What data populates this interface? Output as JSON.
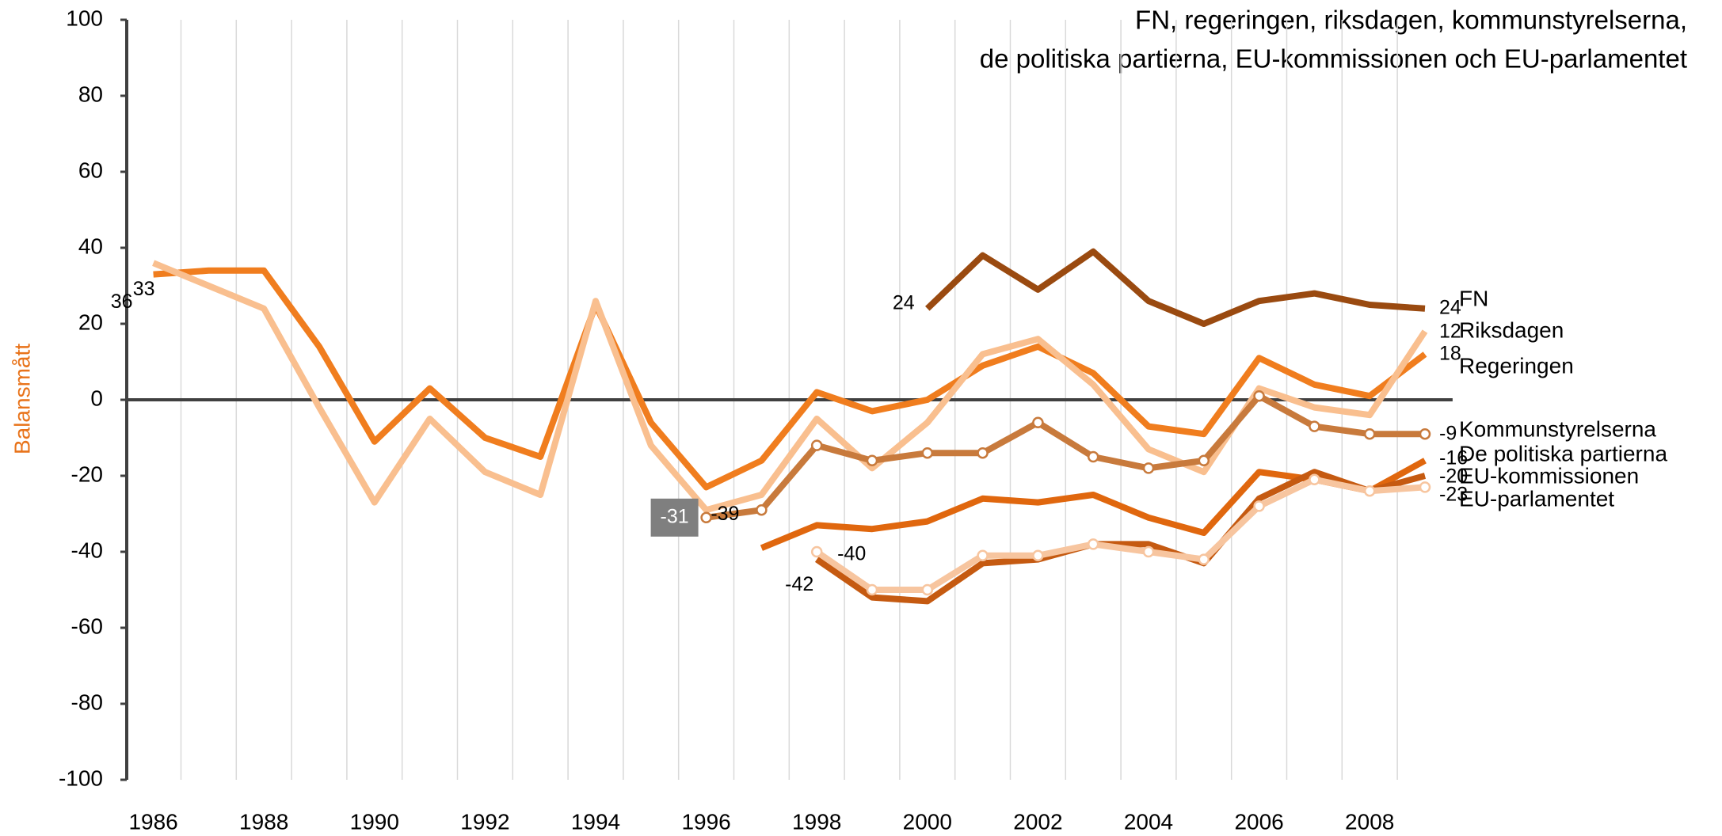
{
  "chart_data": {
    "type": "line",
    "title": "FN, regeringen, riksdagen, kommunstyrelserna,",
    "subtitle": "de politiska partierna, EU-kommissionen och EU-parlamentet",
    "y_label": "Balansmått",
    "x": [
      1986,
      1987,
      1988,
      1989,
      1990,
      1991,
      1992,
      1993,
      1994,
      1995,
      1996,
      1997,
      1998,
      1999,
      2000,
      2001,
      2002,
      2003,
      2004,
      2005,
      2006,
      2007,
      2008,
      2009
    ],
    "xticks": [
      1986,
      1988,
      1990,
      1992,
      1994,
      1996,
      1998,
      2000,
      2002,
      2004,
      2006,
      2008
    ],
    "xlim": [
      1985.5,
      2009.5
    ],
    "ylim": [
      -100,
      100
    ],
    "yticks": [
      -100,
      -80,
      -60,
      -40,
      -20,
      0,
      20,
      40,
      60,
      80,
      100
    ],
    "series": [
      {
        "name": "FN",
        "color": "#9a4a10",
        "values": [
          null,
          null,
          null,
          null,
          null,
          null,
          null,
          null,
          null,
          null,
          null,
          null,
          null,
          null,
          24,
          38,
          29,
          39,
          26,
          20,
          26,
          28,
          25,
          24
        ]
      },
      {
        "name": "Riksdagen",
        "color": "#f07d1e",
        "values": [
          33,
          34,
          34,
          14,
          -11,
          3,
          -10,
          -15,
          25,
          -6,
          -23,
          -16,
          2,
          -3,
          0,
          9,
          14,
          7,
          -7,
          -9,
          11,
          4,
          1,
          12
        ]
      },
      {
        "name": "Regeringen",
        "color": "#f9bf8f",
        "values": [
          36,
          30,
          24,
          -2,
          -27,
          -5,
          -19,
          -25,
          26,
          -12,
          -29,
          -25,
          -5,
          -18,
          -6,
          12,
          16,
          4,
          -13,
          -19,
          3,
          -2,
          -4,
          18
        ]
      },
      {
        "name": "Kommunstyrelserna",
        "color": "#c87a3c",
        "markers": true,
        "values": [
          null,
          null,
          null,
          null,
          null,
          null,
          null,
          null,
          null,
          null,
          -31,
          -29,
          -12,
          -16,
          -14,
          -14,
          -6,
          -15,
          -18,
          -16,
          1,
          -7,
          -9,
          -9
        ]
      },
      {
        "name": "De politiska partierna",
        "color": "#e0670e",
        "values": [
          null,
          null,
          null,
          null,
          null,
          null,
          null,
          null,
          null,
          null,
          null,
          -39,
          -33,
          -34,
          -32,
          -26,
          -27,
          -25,
          -31,
          -35,
          -19,
          -21,
          -24,
          -16
        ]
      },
      {
        "name": "EU-kommissionen",
        "color": "#c55a11",
        "values": [
          null,
          null,
          null,
          null,
          null,
          null,
          null,
          null,
          null,
          null,
          null,
          null,
          -42,
          -52,
          -53,
          -43,
          -42,
          -38,
          -38,
          -43,
          -26,
          -19,
          -24,
          -20
        ]
      },
      {
        "name": "EU-parlamentet",
        "color": "#f7c59f",
        "markers": true,
        "values": [
          null,
          null,
          null,
          null,
          null,
          null,
          null,
          null,
          null,
          null,
          null,
          null,
          -40,
          -50,
          -50,
          -41,
          -41,
          -38,
          -40,
          -42,
          -28,
          -21,
          -24,
          -23
        ]
      }
    ]
  }
}
